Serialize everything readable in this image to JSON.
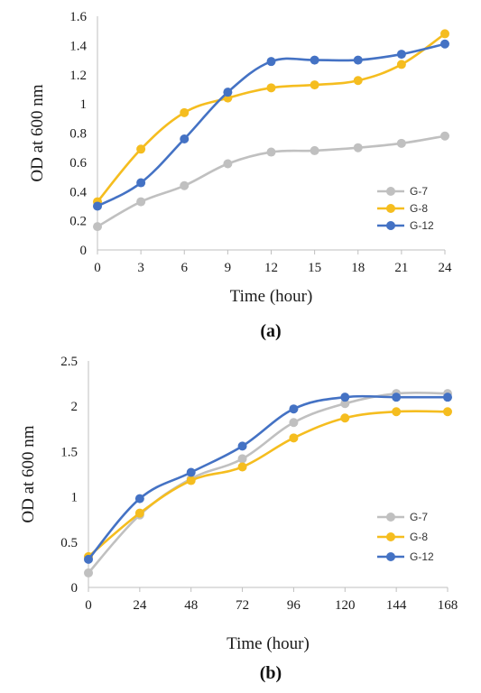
{
  "colors": {
    "G-7": "#c0c0c0",
    "G-8": "#f5bd1f",
    "G-12": "#4472c4",
    "axis": "#bfbfbf"
  },
  "chart_data": [
    {
      "type": "line",
      "panel_label": "(a)",
      "xlabel": "Time (hour)",
      "ylabel": "OD at 600 nm",
      "categories": [
        0,
        3,
        6,
        9,
        12,
        15,
        18,
        21,
        24
      ],
      "x_tick_labels": [
        "0",
        "3",
        "6",
        "9",
        "12",
        "15",
        "18",
        "21",
        "24"
      ],
      "y_ticks": [
        0,
        0.2,
        0.4,
        0.6,
        0.8,
        1,
        1.2,
        1.4,
        1.6
      ],
      "y_tick_labels": [
        "0",
        "0.2",
        "0.4",
        "0.6",
        "0.8",
        "1",
        "1.2",
        "1.4",
        "1.6"
      ],
      "ylim": [
        0,
        1.6
      ],
      "grid": false,
      "legend_position": "bottom-right",
      "series": [
        {
          "name": "G-7",
          "values": [
            0.16,
            0.33,
            0.44,
            0.59,
            0.67,
            0.68,
            0.7,
            0.73,
            0.78
          ]
        },
        {
          "name": "G-8",
          "values": [
            0.33,
            0.69,
            0.94,
            1.04,
            1.11,
            1.13,
            1.16,
            1.27,
            1.48
          ]
        },
        {
          "name": "G-12",
          "values": [
            0.3,
            0.46,
            0.76,
            1.08,
            1.29,
            1.3,
            1.3,
            1.34,
            1.41
          ]
        }
      ]
    },
    {
      "type": "line",
      "panel_label": "(b)",
      "xlabel": "Time (hour)",
      "ylabel": "OD at 600 nm",
      "categories": [
        0,
        24,
        48,
        72,
        96,
        120,
        144,
        168
      ],
      "x_tick_labels": [
        "0",
        "24",
        "48",
        "72",
        "96",
        "120",
        "144",
        "168"
      ],
      "y_ticks": [
        0,
        0.5,
        1,
        1.5,
        2,
        2.5
      ],
      "y_tick_labels": [
        "0",
        "0.5",
        "1",
        "1.5",
        "2",
        "2.5"
      ],
      "ylim": [
        0,
        2.5
      ],
      "grid": false,
      "legend_position": "bottom-right",
      "series": [
        {
          "name": "G-7",
          "values": [
            0.16,
            0.8,
            1.2,
            1.42,
            1.82,
            2.03,
            2.14,
            2.14
          ]
        },
        {
          "name": "G-8",
          "values": [
            0.34,
            0.82,
            1.18,
            1.33,
            1.65,
            1.87,
            1.94,
            1.94
          ]
        },
        {
          "name": "G-12",
          "values": [
            0.31,
            0.98,
            1.27,
            1.56,
            1.97,
            2.1,
            2.1,
            2.1
          ]
        }
      ]
    }
  ]
}
